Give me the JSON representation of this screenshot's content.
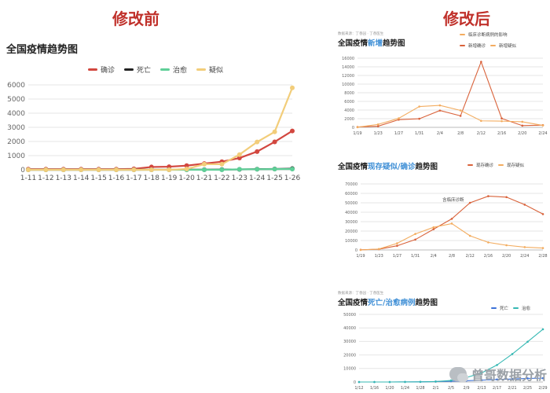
{
  "page": {
    "heading_before": "修改前",
    "heading_after": "修改后",
    "watermark": "曾哥数据分析"
  },
  "colors": {
    "confirmed": "#d2473f",
    "death": "#222222",
    "cured": "#5fcf98",
    "suspected": "#f2cd7a",
    "right_line1": "#d9623a",
    "right_line2": "#f3ac5f",
    "death_blue": "#3c72d8",
    "cured_teal": "#35b8b3",
    "highlight": "#3f8fd6"
  },
  "left_chart": {
    "title": "全国疫情趋势图"
  },
  "right_charts": [
    {
      "note": "数据来源：丁香园 · 丁香医生",
      "title_pre": "全国疫情",
      "title_hl": "新增",
      "title_post": "趋势图",
      "extra_legend": "临床诊断病例的影响"
    },
    {
      "note": "",
      "title_pre": "全国疫情",
      "title_hl": "现存疑似/确诊",
      "title_post": "趋势图",
      "annotation": "含临床诊断"
    },
    {
      "note": "数据来源：丁香园 · 丁香医生",
      "title_pre": "全国疫情",
      "title_hl": "死亡/治愈病例",
      "title_post": "趋势图"
    }
  ],
  "chart_data": [
    {
      "type": "line",
      "title": "全国疫情趋势图",
      "categories": [
        "1-11",
        "1-12",
        "1-13",
        "1-14",
        "1-15",
        "1-16",
        "1-17",
        "1-18",
        "1-19",
        "1-20",
        "1-21",
        "1-22",
        "1-23",
        "1-24",
        "1-25",
        "1-26"
      ],
      "series": [
        {
          "name": "确诊",
          "values": [
            41,
            41,
            41,
            41,
            41,
            45,
            62,
            198,
            218,
            291,
            440,
            571,
            830,
            1287,
            1975,
            2744
          ]
        },
        {
          "name": "死亡",
          "values": [
            1,
            1,
            1,
            1,
            2,
            2,
            2,
            3,
            3,
            6,
            9,
            17,
            25,
            41,
            56,
            80
          ]
        },
        {
          "name": "治愈",
          "values": [
            0,
            0,
            0,
            0,
            0,
            0,
            0,
            0,
            0,
            0,
            0,
            0,
            34,
            38,
            49,
            51
          ]
        },
        {
          "name": "疑似",
          "values": [
            0,
            0,
            0,
            0,
            0,
            0,
            0,
            0,
            0,
            54,
            393,
            393,
            1072,
            1965,
            2684,
            5794
          ]
        }
      ],
      "ylim": [
        0,
        6000
      ],
      "yticks": [
        0,
        1000,
        2000,
        3000,
        4000,
        5000,
        6000
      ],
      "grid": true,
      "legend": "top-center"
    },
    {
      "type": "line",
      "title": "全国疫情新增趋势图",
      "categories": [
        "1/19",
        "1/23",
        "1/27",
        "1/31",
        "2/4",
        "2/8",
        "2/12",
        "2/16",
        "2/20",
        "2/24"
      ],
      "series": [
        {
          "name": "新增确诊",
          "values": [
            77,
            259,
            1771,
            1982,
            3887,
            2656,
            15152,
            2048,
            394,
            508
          ]
        },
        {
          "name": "新增疑似",
          "values": [
            27,
            680,
            2077,
            4812,
            5072,
            3916,
            1500,
            1432,
            1277,
            439
          ]
        }
      ],
      "ylim": [
        0,
        16000
      ],
      "yticks": [
        0,
        2000,
        4000,
        6000,
        8000,
        10000,
        12000,
        14000,
        16000
      ],
      "legend": "top-right"
    },
    {
      "type": "line",
      "title": "全国疫情现存疑似/确诊趋势图",
      "categories": [
        "1/19",
        "1/23",
        "1/27",
        "1/31",
        "2/4",
        "2/8",
        "2/12",
        "2/16",
        "2/20",
        "2/24",
        "2/28"
      ],
      "series": [
        {
          "name": "现存确诊",
          "values": [
            200,
            800,
            4400,
            11000,
            22000,
            33000,
            50000,
            57000,
            56000,
            48000,
            38000
          ]
        },
        {
          "name": "现存疑似",
          "values": [
            0,
            1000,
            7000,
            17000,
            24000,
            28000,
            15000,
            8000,
            5000,
            3000,
            2000
          ]
        }
      ],
      "ylim": [
        0,
        70000
      ],
      "yticks": [
        0,
        10000,
        20000,
        30000,
        40000,
        50000,
        60000,
        70000
      ],
      "legend": "top-right"
    },
    {
      "type": "line",
      "title": "全国疫情死亡/治愈病例趋势图",
      "categories": [
        "1/12",
        "1/16",
        "1/20",
        "1/24",
        "1/28",
        "2/1",
        "2/5",
        "2/9",
        "2/13",
        "2/17",
        "2/21",
        "2/25",
        "2/29"
      ],
      "series": [
        {
          "name": "死亡",
          "values": [
            1,
            2,
            6,
            41,
            132,
            304,
            563,
            910,
            1380,
            1868,
            2236,
            2663,
            2835
          ]
        },
        {
          "name": "治愈",
          "values": [
            0,
            0,
            0,
            38,
            103,
            328,
            1153,
            3281,
            6723,
            12552,
            20659,
            29745,
            39000
          ]
        }
      ],
      "ylim": [
        0,
        50000
      ],
      "yticks": [
        0,
        10000,
        20000,
        30000,
        40000,
        50000
      ],
      "legend": "top-right"
    }
  ]
}
